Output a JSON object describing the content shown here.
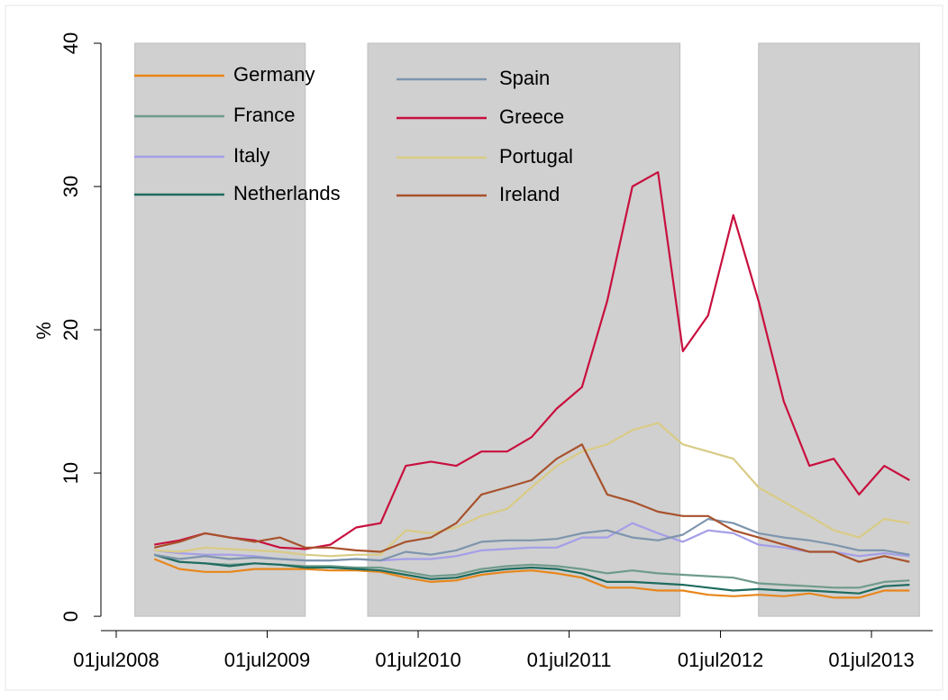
{
  "chart_data": {
    "type": "line",
    "y_label": "%",
    "x": [
      "2008-10-01",
      "2008-12-01",
      "2009-02-01",
      "2009-04-01",
      "2009-06-01",
      "2009-08-01",
      "2009-10-01",
      "2009-12-01",
      "2010-02-01",
      "2010-04-01",
      "2010-06-01",
      "2010-08-01",
      "2010-10-01",
      "2010-12-01",
      "2011-02-01",
      "2011-04-01",
      "2011-06-01",
      "2011-08-01",
      "2011-10-01",
      "2011-12-01",
      "2012-02-01",
      "2012-04-01",
      "2012-06-01",
      "2012-08-01",
      "2012-10-01",
      "2012-12-01",
      "2013-02-01",
      "2013-04-01",
      "2013-06-01",
      "2013-08-01",
      "2013-10-01"
    ],
    "xlim": [
      "2008-05-25",
      "2013-11-26"
    ],
    "xticks": [
      {
        "value": "2008-07-01",
        "label": "01jul2008"
      },
      {
        "value": "2009-07-01",
        "label": "01jul2009"
      },
      {
        "value": "2010-07-01",
        "label": "01jul2010"
      },
      {
        "value": "2011-07-01",
        "label": "01jul2011"
      },
      {
        "value": "2012-07-01",
        "label": "01jul2012"
      },
      {
        "value": "2013-07-01",
        "label": "01jul2013"
      }
    ],
    "ylim": [
      -1,
      40
    ],
    "yticks": [
      0,
      10,
      20,
      30,
      40
    ],
    "shaded_periods": [
      [
        "2008-08-15",
        "2009-10-01"
      ],
      [
        "2010-03-01",
        "2012-03-25"
      ],
      [
        "2012-10-01",
        "2013-10-25"
      ]
    ],
    "shade_color": "#d0d0d0",
    "series": [
      {
        "name": "Germany",
        "color": "#e8861a",
        "values": [
          4.0,
          3.3,
          3.1,
          3.1,
          3.3,
          3.3,
          3.3,
          3.2,
          3.2,
          3.1,
          2.7,
          2.4,
          2.5,
          2.9,
          3.1,
          3.2,
          3.0,
          2.7,
          2.0,
          2.0,
          1.8,
          1.8,
          1.5,
          1.4,
          1.5,
          1.4,
          1.6,
          1.3,
          1.3,
          1.8,
          1.8
        ]
      },
      {
        "name": "France",
        "color": "#6f9b8a",
        "values": [
          4.3,
          3.8,
          3.7,
          3.6,
          3.7,
          3.6,
          3.5,
          3.5,
          3.4,
          3.4,
          3.1,
          2.8,
          2.9,
          3.3,
          3.5,
          3.6,
          3.5,
          3.3,
          3.0,
          3.2,
          3.0,
          2.9,
          2.8,
          2.7,
          2.3,
          2.2,
          2.1,
          2.0,
          2.0,
          2.4,
          2.5
        ]
      },
      {
        "name": "Italy",
        "color": "#a59ee8",
        "values": [
          4.6,
          4.4,
          4.3,
          4.3,
          4.2,
          4.0,
          3.9,
          3.9,
          4.0,
          3.9,
          4.0,
          4.0,
          4.2,
          4.6,
          4.7,
          4.8,
          4.8,
          5.5,
          5.5,
          6.5,
          5.8,
          5.2,
          6.0,
          5.8,
          5.0,
          4.8,
          4.5,
          4.5,
          4.2,
          4.4,
          4.2
        ]
      },
      {
        "name": "Netherlands",
        "color": "#1e6b5f",
        "values": [
          4.3,
          3.8,
          3.7,
          3.5,
          3.7,
          3.6,
          3.4,
          3.4,
          3.3,
          3.2,
          2.9,
          2.6,
          2.7,
          3.1,
          3.3,
          3.4,
          3.3,
          3.0,
          2.4,
          2.4,
          2.3,
          2.2,
          2.0,
          1.8,
          1.9,
          1.8,
          1.8,
          1.7,
          1.6,
          2.1,
          2.2
        ]
      },
      {
        "name": "Spain",
        "color": "#7e95ad",
        "values": [
          4.3,
          4.0,
          4.2,
          4.0,
          4.1,
          4.0,
          3.9,
          3.9,
          4.0,
          3.9,
          4.5,
          4.3,
          4.6,
          5.2,
          5.3,
          5.3,
          5.4,
          5.8,
          6.0,
          5.5,
          5.3,
          5.7,
          6.8,
          6.5,
          5.8,
          5.5,
          5.3,
          5.0,
          4.6,
          4.6,
          4.3
        ]
      },
      {
        "name": "Greece",
        "color": "#c8103e",
        "values": [
          5.0,
          5.3,
          5.8,
          5.5,
          5.3,
          4.8,
          4.7,
          5.0,
          6.2,
          6.5,
          10.5,
          10.8,
          10.5,
          11.5,
          11.5,
          12.5,
          14.5,
          16,
          22,
          30,
          31,
          18.5,
          21,
          28,
          22,
          15,
          10.5,
          11,
          8.5,
          10.5,
          9.5
        ]
      },
      {
        "name": "Portugal",
        "color": "#d9cb85",
        "values": [
          4.6,
          4.5,
          4.8,
          4.7,
          4.6,
          4.5,
          4.3,
          4.2,
          4.3,
          4.3,
          6.0,
          5.8,
          6.2,
          7.0,
          7.5,
          9.0,
          10.5,
          11.5,
          12.0,
          13.0,
          13.5,
          12.0,
          11.5,
          11.0,
          9.0,
          8.0,
          7.0,
          6.0,
          5.5,
          6.8,
          6.5
        ]
      },
      {
        "name": "Ireland",
        "color": "#a8522c",
        "values": [
          4.8,
          5.2,
          5.8,
          5.5,
          5.2,
          5.5,
          4.8,
          4.8,
          4.6,
          4.5,
          5.2,
          5.5,
          6.5,
          8.5,
          9.0,
          9.5,
          11.0,
          12.0,
          8.5,
          8.0,
          7.3,
          7.0,
          7.0,
          6.0,
          5.5,
          5.0,
          4.5,
          4.5,
          3.8,
          4.2,
          3.8
        ]
      }
    ]
  }
}
